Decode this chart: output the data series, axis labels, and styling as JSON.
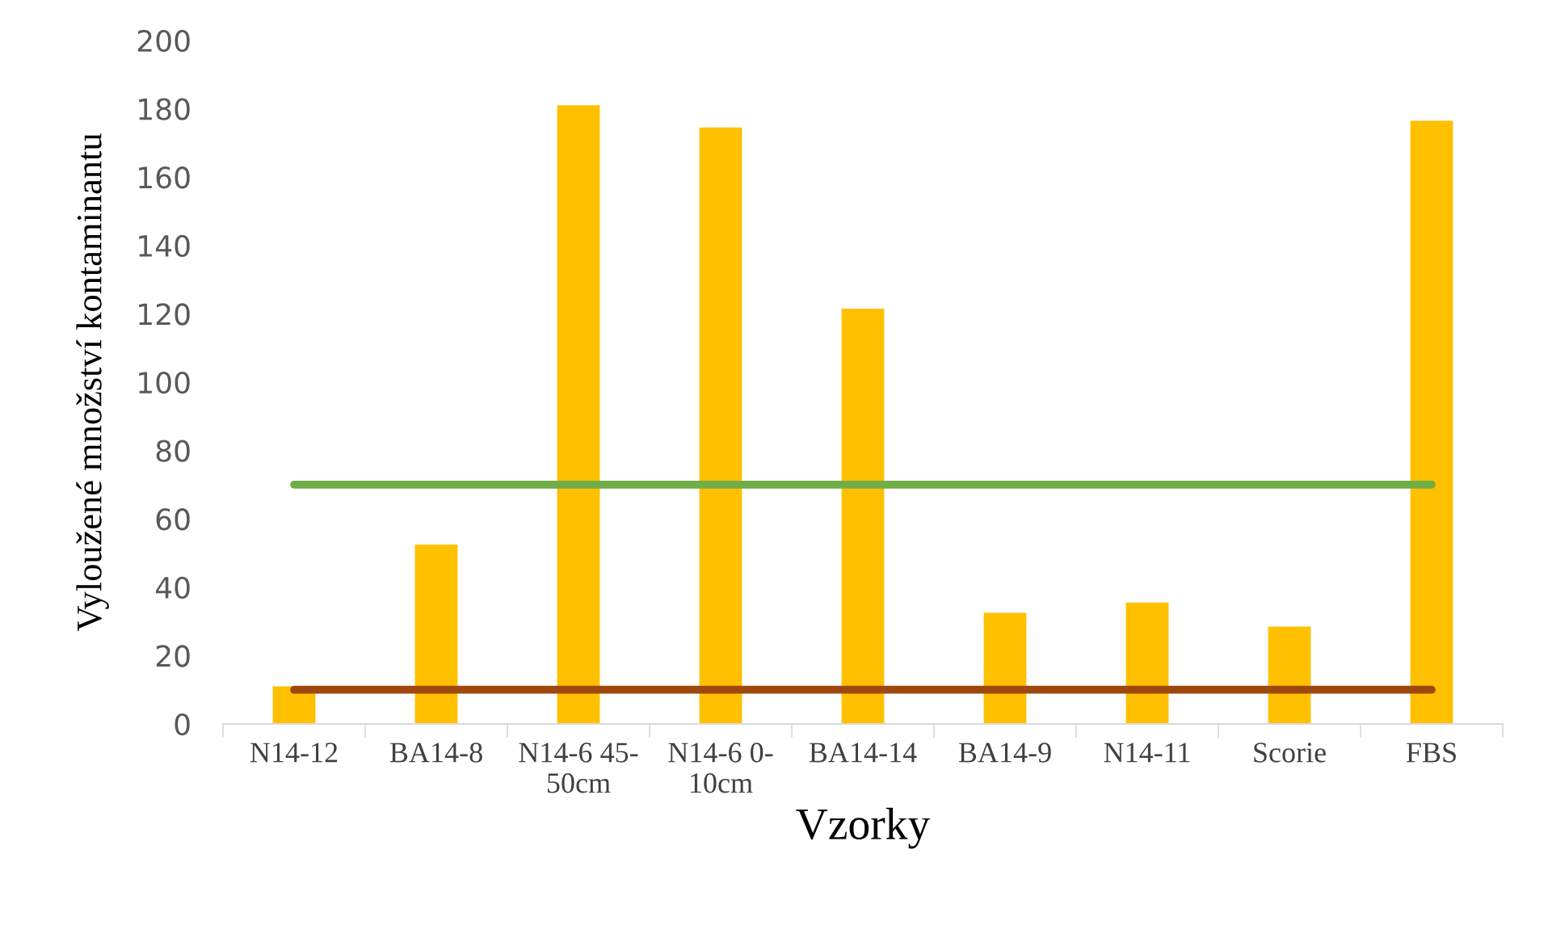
{
  "chart_data": {
    "type": "bar",
    "xlabel": "Vzorky",
    "ylabel": "Vyloužené množství kontaminantu",
    "categories": [
      "N14-12",
      "BA14-8",
      "N14-6 45-\n50cm",
      "N14-6 0-\n10cm",
      "BA14-14",
      "BA14-9",
      "N14-11",
      "Scorie",
      "FBS"
    ],
    "series": [
      {
        "color": "#ffc000",
        "values": [
          11,
          52.5,
          181,
          174.5,
          121.5,
          32.5,
          35.5,
          28.5,
          176.5
        ]
      },
      {
        "type": "line",
        "color": "#70ad47",
        "values": [
          70,
          70,
          70,
          70,
          70,
          70,
          70,
          70,
          70
        ]
      },
      {
        "type": "line",
        "color": "#9e480e",
        "values": [
          10,
          10,
          10,
          10,
          10,
          10,
          10,
          10,
          10
        ]
      }
    ],
    "ylim": [
      0,
      200
    ],
    "yticks": [
      0,
      20,
      40,
      60,
      80,
      100,
      120,
      140,
      160,
      180,
      200
    ],
    "grid": false
  }
}
